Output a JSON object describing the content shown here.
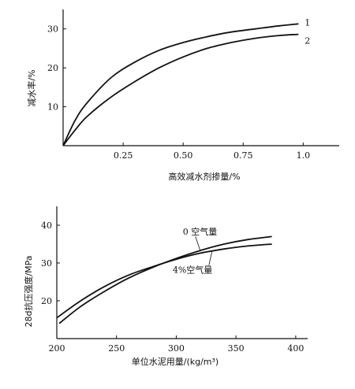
{
  "chart_data": [
    {
      "type": "line",
      "title": "",
      "xlabel": "高效减水剂掺量/%",
      "ylabel": "减水率/%",
      "xlim": [
        0,
        1.15
      ],
      "ylim": [
        0,
        35
      ],
      "xticks": [
        "0.25",
        "0.50",
        "0.75",
        "1.0"
      ],
      "xtick_values": [
        0.25,
        0.5,
        0.75,
        1.0
      ],
      "yticks": [
        "10",
        "20",
        "30"
      ],
      "ytick_values": [
        10,
        20,
        30
      ],
      "grid": false,
      "series": [
        {
          "name": "1",
          "x": [
            0,
            0.05,
            0.1,
            0.2,
            0.3,
            0.4,
            0.5,
            0.6,
            0.7,
            0.8,
            0.9,
            0.98
          ],
          "y": [
            0,
            6.5,
            11,
            17.5,
            21.5,
            24.5,
            26.5,
            28,
            29.2,
            30,
            30.8,
            31.3
          ]
        },
        {
          "name": "2",
          "x": [
            0,
            0.05,
            0.1,
            0.2,
            0.3,
            0.4,
            0.5,
            0.6,
            0.7,
            0.8,
            0.9,
            0.98
          ],
          "y": [
            0,
            4,
            7.5,
            12.5,
            16.5,
            20,
            22.8,
            25,
            26.5,
            27.6,
            28.3,
            28.6
          ]
        }
      ]
    },
    {
      "type": "line",
      "title": "",
      "xlabel": "单位水泥用量/(kg/m³)",
      "ylabel": "28d抗压强度/MPa",
      "xlim": [
        200,
        410
      ],
      "ylim": [
        10,
        45
      ],
      "xticks": [
        "200",
        "250",
        "300",
        "350",
        "400"
      ],
      "xtick_values": [
        200,
        250,
        300,
        350,
        400
      ],
      "yticks": [
        "20",
        "30",
        "40"
      ],
      "ytick_values": [
        20,
        30,
        40
      ],
      "grid": false,
      "series": [
        {
          "name": "0 空气量",
          "x": [
            202,
            220,
            240,
            260,
            280,
            300,
            320,
            340,
            360,
            380
          ],
          "y": [
            14,
            18.5,
            22.5,
            26,
            28.8,
            31.2,
            33.3,
            35,
            36.2,
            37
          ]
        },
        {
          "name": "4%空气量",
          "x": [
            200,
            220,
            240,
            260,
            280,
            300,
            320,
            340,
            360,
            380
          ],
          "y": [
            15.5,
            20,
            23.8,
            26.8,
            29,
            31,
            32.6,
            33.7,
            34.5,
            35
          ]
        }
      ]
    }
  ]
}
